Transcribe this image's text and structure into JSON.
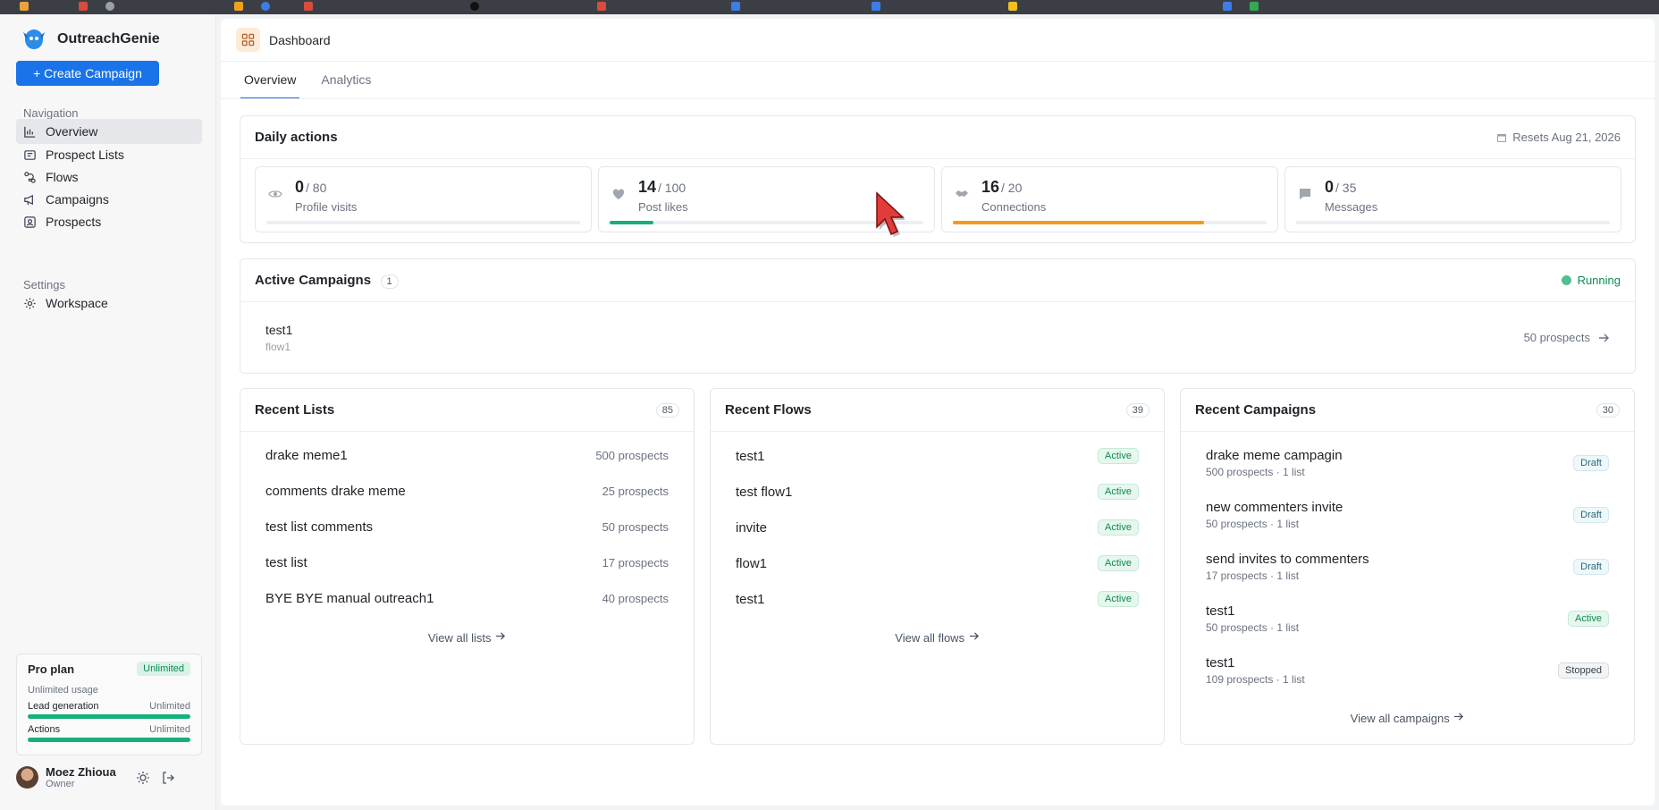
{
  "app": {
    "name": "OutreachGenie",
    "create_button": "+ Create Campaign"
  },
  "sidebar": {
    "nav_label": "Navigation",
    "nav_items": [
      {
        "label": "Overview",
        "icon": "chart-icon"
      },
      {
        "label": "Prospect Lists",
        "icon": "list-icon"
      },
      {
        "label": "Flows",
        "icon": "flow-icon"
      },
      {
        "label": "Campaigns",
        "icon": "megaphone-icon"
      },
      {
        "label": "Prospects",
        "icon": "contact-icon"
      }
    ],
    "settings_label": "Settings",
    "settings_items": [
      {
        "label": "Workspace",
        "icon": "gear-icon"
      }
    ]
  },
  "plan": {
    "title": "Pro plan",
    "badge": "Unlimited",
    "usage": "Unlimited usage",
    "rows": [
      {
        "label": "Lead generation",
        "value": "Unlimited"
      },
      {
        "label": "Actions",
        "value": "Unlimited"
      }
    ]
  },
  "user": {
    "name": "Moez Zhioua",
    "role": "Owner"
  },
  "header": {
    "title": "Dashboard"
  },
  "tabs": [
    {
      "label": "Overview"
    },
    {
      "label": "Analytics"
    }
  ],
  "daily": {
    "title": "Daily actions",
    "resets": "Resets Aug 21, 2026",
    "stats": [
      {
        "value": "0",
        "max": "/ 80",
        "label": "Profile visits",
        "progress": 0,
        "color": "#e5e7eb"
      },
      {
        "value": "14",
        "max": "/ 100",
        "label": "Post likes",
        "progress": 0.14,
        "color": "#16b07a"
      },
      {
        "value": "16",
        "max": "/ 20",
        "label": "Connections",
        "progress": 0.8,
        "color": "#f29b1d"
      },
      {
        "value": "0",
        "max": "/ 35",
        "label": "Messages",
        "progress": 0,
        "color": "#e5e7eb"
      }
    ]
  },
  "active_campaigns": {
    "title": "Active Campaigns",
    "count": "1",
    "status": "Running",
    "items": [
      {
        "name": "test1",
        "flow": "flow1",
        "prospects": "50 prospects"
      }
    ]
  },
  "recent_lists": {
    "title": "Recent Lists",
    "count": "85",
    "items": [
      {
        "name": "drake meme1",
        "meta": "500 prospects"
      },
      {
        "name": "comments drake meme",
        "meta": "25 prospects"
      },
      {
        "name": "test list comments",
        "meta": "50 prospects"
      },
      {
        "name": "test list",
        "meta": "17 prospects"
      },
      {
        "name": "BYE BYE manual outreach1",
        "meta": "40 prospects"
      }
    ],
    "view_all": "View all lists"
  },
  "recent_flows": {
    "title": "Recent Flows",
    "count": "39",
    "items": [
      {
        "name": "test1",
        "status": "Active"
      },
      {
        "name": "test flow1",
        "status": "Active"
      },
      {
        "name": "invite",
        "status": "Active"
      },
      {
        "name": "flow1",
        "status": "Active"
      },
      {
        "name": "test1",
        "status": "Active"
      }
    ],
    "view_all": "View all flows"
  },
  "recent_campaigns": {
    "title": "Recent Campaigns",
    "count": "30",
    "items": [
      {
        "name": "drake meme campagin",
        "meta": "500 prospects · 1 list",
        "status": "Draft"
      },
      {
        "name": "new commenters invite",
        "meta": "50 prospects · 1 list",
        "status": "Draft"
      },
      {
        "name": "send invites to commenters",
        "meta": "17 prospects · 1 list",
        "status": "Draft"
      },
      {
        "name": "test1",
        "meta": "50 prospects · 1 list",
        "status": "Active"
      },
      {
        "name": "test1",
        "meta": "109 prospects · 1 list",
        "status": "Stopped"
      }
    ],
    "view_all": "View all campaigns"
  }
}
